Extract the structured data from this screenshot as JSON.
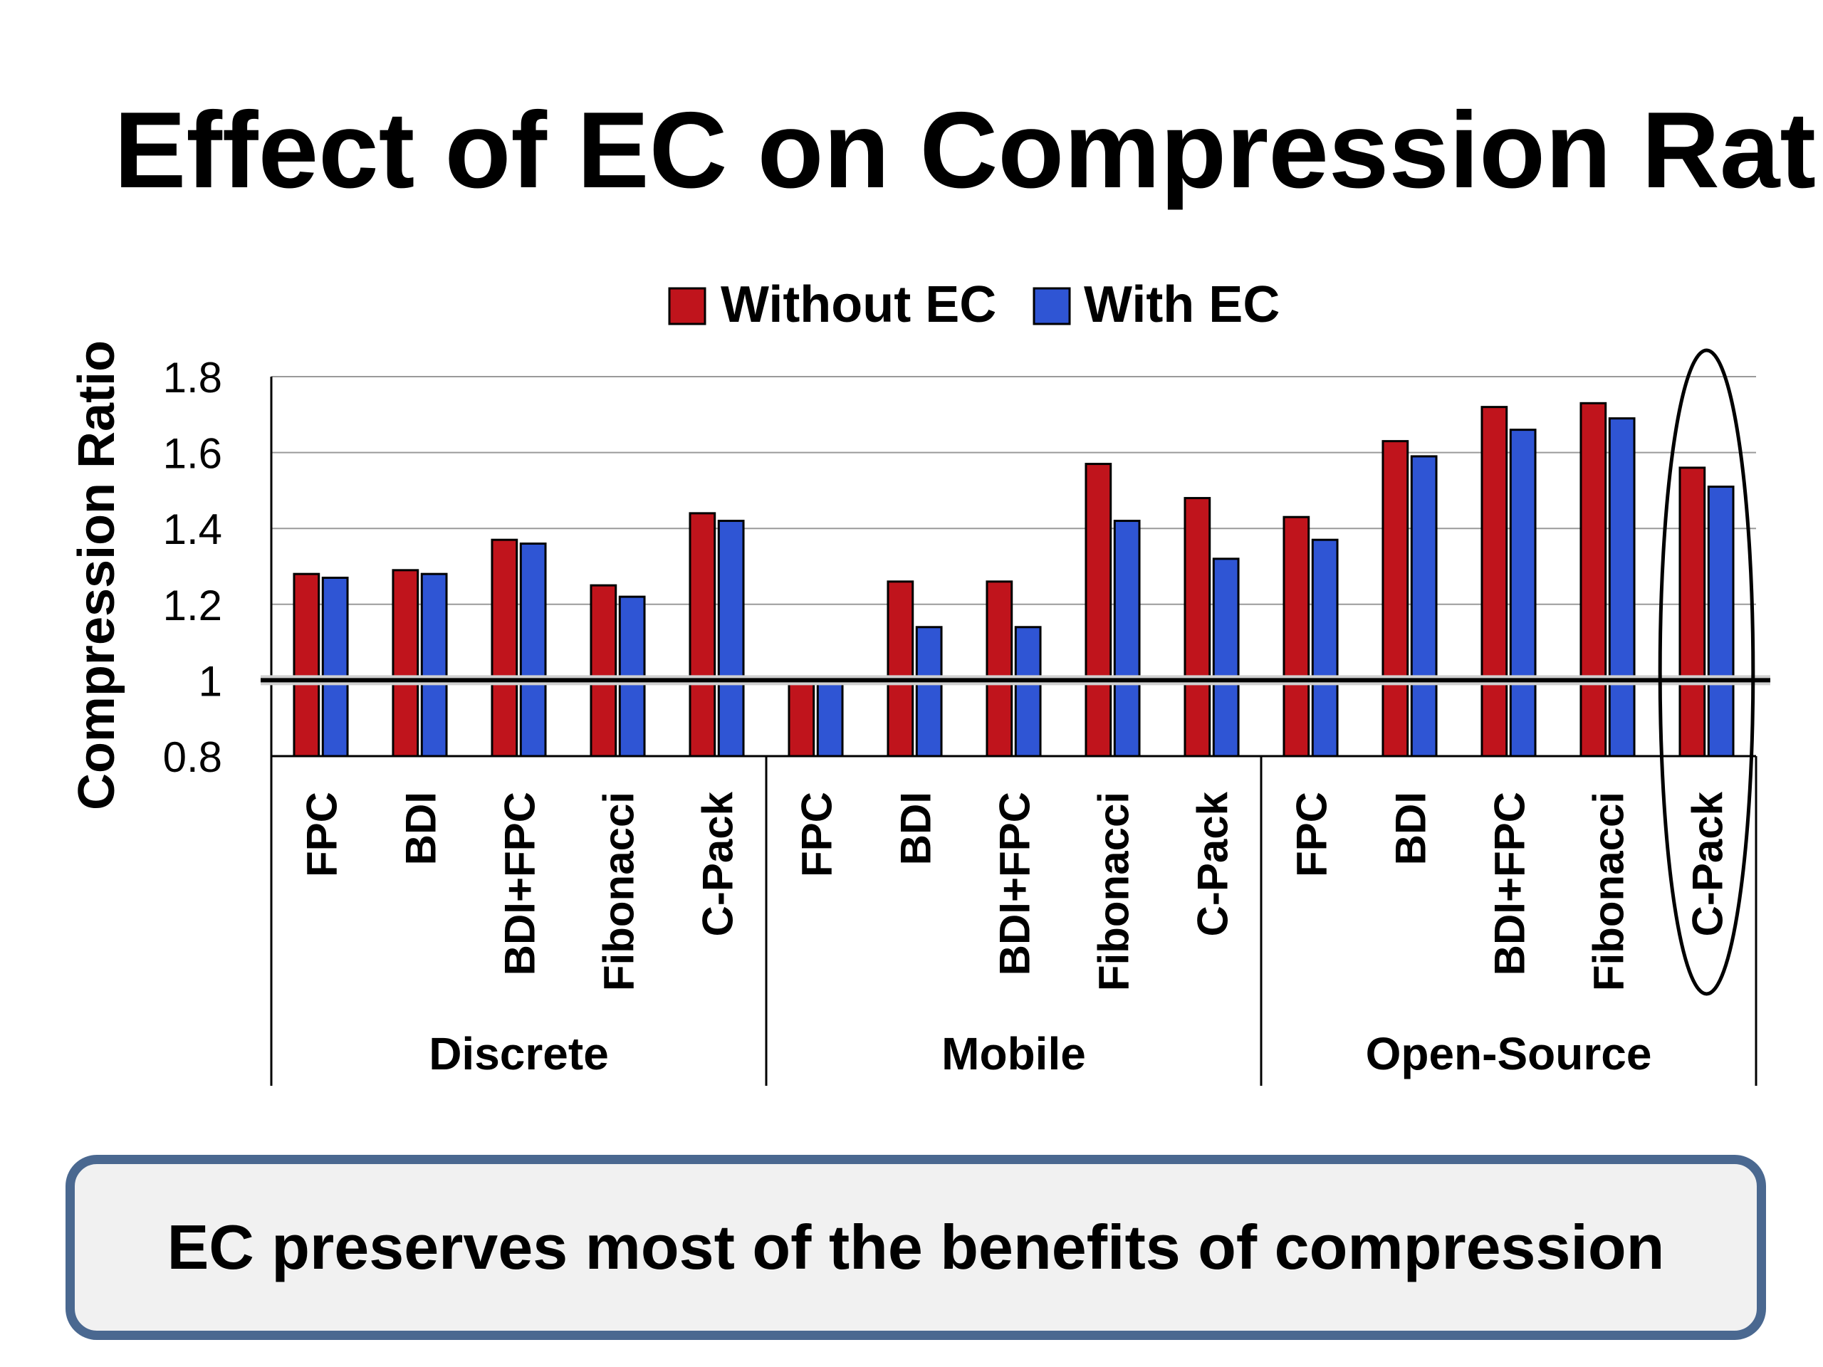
{
  "slide": {
    "title": "Effect of EC on Compression Ratio",
    "callout": "EC preserves most of the benefits of compression"
  },
  "colors": {
    "without_ec": "#c0141c",
    "with_ec": "#2f55d4",
    "callout_border": "#4a6890",
    "callout_fill": "#f1f1f1"
  },
  "chart_data": {
    "type": "bar",
    "title": "",
    "ylabel": "Compression Ratio",
    "xlabel": "",
    "ylim": [
      0.8,
      1.8
    ],
    "yticks": [
      "0.8",
      "1",
      "1.2",
      "1.4",
      "1.6",
      "1.8"
    ],
    "grid": true,
    "reference_line": 1,
    "legend_position": "top",
    "groups": [
      {
        "name": "Discrete",
        "categories": [
          "FPC",
          "BDI",
          "BDI+FPC",
          "Fibonacci",
          "C-Pack"
        ]
      },
      {
        "name": "Mobile",
        "categories": [
          "FPC",
          "BDI",
          "BDI+FPC",
          "Fibonacci",
          "C-Pack"
        ]
      },
      {
        "name": "Open-Source",
        "categories": [
          "FPC",
          "BDI",
          "BDI+FPC",
          "Fibonacci",
          "C-Pack"
        ]
      }
    ],
    "series": [
      {
        "name": "Without EC",
        "color": "#c0141c",
        "values": [
          1.28,
          1.29,
          1.37,
          1.25,
          1.44,
          1.01,
          1.26,
          1.26,
          1.57,
          1.48,
          1.43,
          1.63,
          1.72,
          1.73,
          1.56
        ]
      },
      {
        "name": "With EC",
        "color": "#2f55d4",
        "values": [
          1.27,
          1.28,
          1.36,
          1.22,
          1.42,
          1.01,
          1.14,
          1.14,
          1.42,
          1.32,
          1.37,
          1.59,
          1.66,
          1.69,
          1.51
        ]
      }
    ],
    "highlighted": {
      "group": "Open-Source",
      "category": "C-Pack"
    }
  }
}
